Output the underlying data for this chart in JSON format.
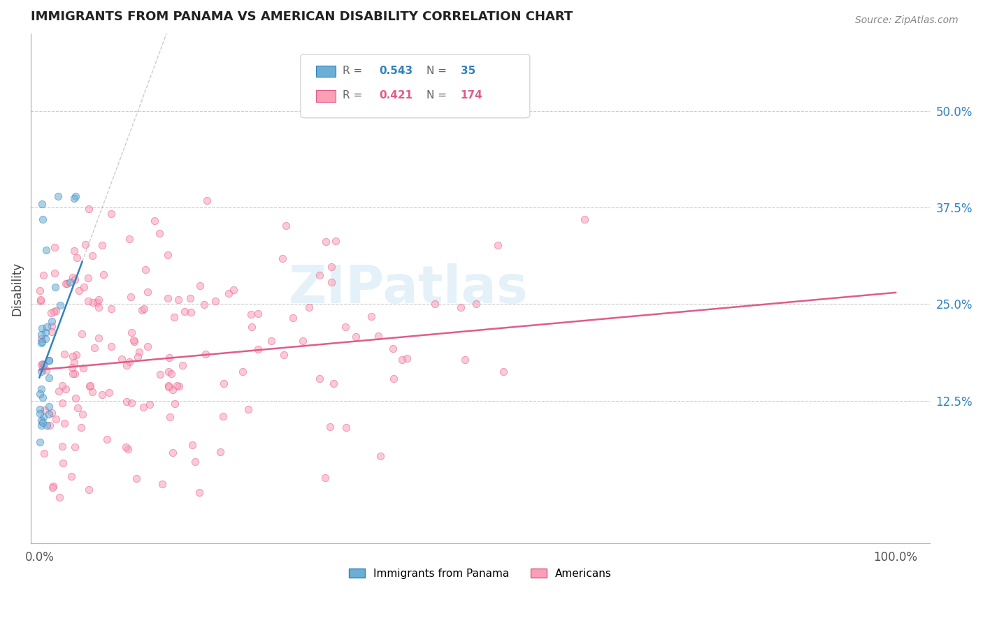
{
  "title": "IMMIGRANTS FROM PANAMA VS AMERICAN DISABILITY CORRELATION CHART",
  "source": "Source: ZipAtlas.com",
  "ylabel": "Disability",
  "color_blue": "#6baed6",
  "color_pink": "#fa9fb5",
  "color_blue_line": "#3182bd",
  "color_pink_line": "#e05c8a",
  "color_blue_text": "#3182bd",
  "color_pink_text": "#e05c8a",
  "watermark": "ZIPatlas",
  "legend_r1_val": "0.543",
  "legend_n1_val": "35",
  "legend_r2_val": "0.421",
  "legend_n2_val": "174"
}
